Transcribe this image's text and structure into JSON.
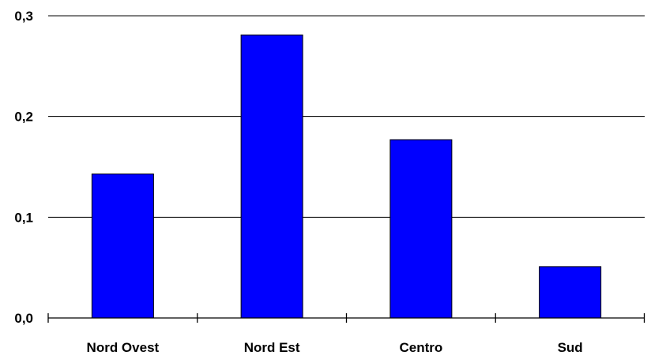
{
  "chart_data": {
    "type": "bar",
    "categories": [
      "Nord Ovest",
      "Nord Est",
      "Centro",
      "Sud"
    ],
    "values": [
      0.143,
      0.281,
      0.177,
      0.051
    ],
    "ylim": [
      0.0,
      0.3
    ],
    "yticks": [
      0.0,
      0.1,
      0.2,
      0.3
    ],
    "ytick_labels": [
      "0,0",
      "0,1",
      "0,2",
      "0,3"
    ],
    "grid": true,
    "bar_color": "#0000FF",
    "title": "",
    "xlabel": "",
    "ylabel": ""
  }
}
